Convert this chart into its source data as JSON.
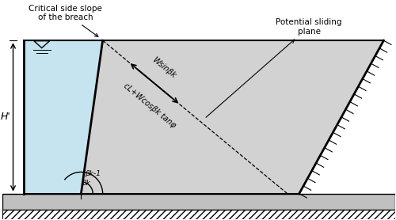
{
  "fig_width": 5.0,
  "fig_height": 2.78,
  "dpi": 100,
  "bg_color": "#ffffff",
  "water_color": "#c5e4f0",
  "dam_color": "#d2d2d2",
  "ground_color": "#c0c0c0",
  "line_color": "#000000",
  "label_H": "H'",
  "label_critical": "Critical side slope\nof the breach",
  "label_potential": "Potential sliding\nplane",
  "label_wsinb": "Wsinβk",
  "label_cLwcosb": "cL+Wcosβk tanφ",
  "label_bk": "βk",
  "label_bk2": "βk-1",
  "xlim": [
    0,
    10
  ],
  "ylim": [
    0,
    5.56
  ]
}
